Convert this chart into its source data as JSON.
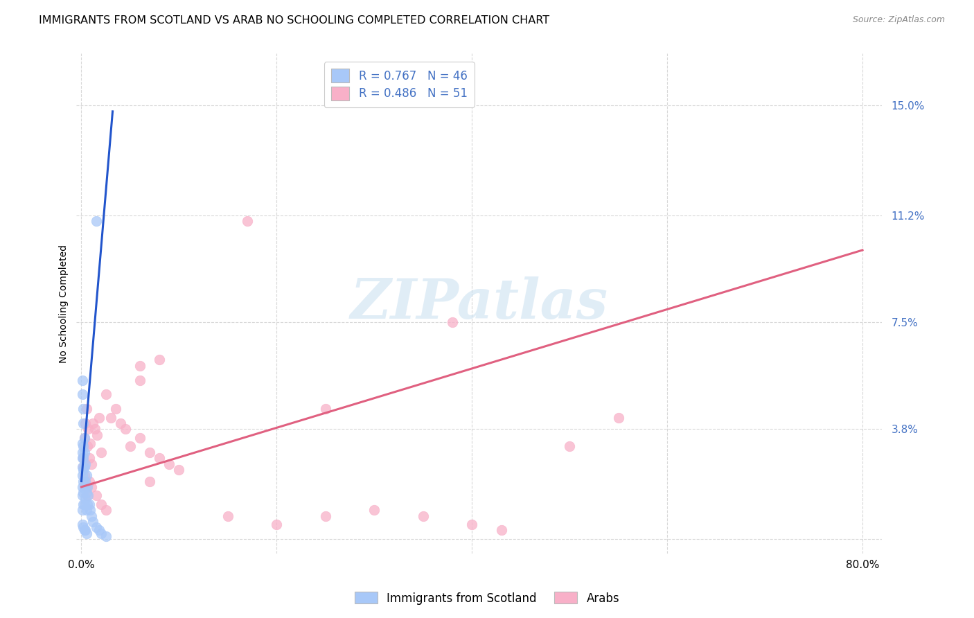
{
  "title": "IMMIGRANTS FROM SCOTLAND VS ARAB NO SCHOOLING COMPLETED CORRELATION CHART",
  "source": "Source: ZipAtlas.com",
  "ylabel": "No Schooling Completed",
  "ytick_positions": [
    0.0,
    0.038,
    0.075,
    0.112,
    0.15
  ],
  "ytick_labels": [
    "",
    "3.8%",
    "7.5%",
    "11.2%",
    "15.0%"
  ],
  "xlim": [
    -0.005,
    0.82
  ],
  "ylim": [
    -0.005,
    0.168
  ],
  "legend_blue_R": "0.767",
  "legend_blue_N": "46",
  "legend_pink_R": "0.486",
  "legend_pink_N": "51",
  "legend_label_blue": "Immigrants from Scotland",
  "legend_label_pink": "Arabs",
  "blue_scatter_color": "#a8c8f8",
  "pink_scatter_color": "#f8b0c8",
  "blue_line_color": "#2255cc",
  "pink_line_color": "#e06080",
  "watermark_text": "ZIPatlas",
  "watermark_color": "#c8dff0",
  "blue_scatter_x": [
    0.001,
    0.001,
    0.001,
    0.001,
    0.001,
    0.001,
    0.001,
    0.001,
    0.002,
    0.002,
    0.002,
    0.002,
    0.002,
    0.002,
    0.003,
    0.003,
    0.003,
    0.003,
    0.004,
    0.004,
    0.004,
    0.005,
    0.005,
    0.005,
    0.006,
    0.006,
    0.007,
    0.008,
    0.009,
    0.01,
    0.012,
    0.015,
    0.018,
    0.02,
    0.025,
    0.001,
    0.001,
    0.002,
    0.002,
    0.003,
    0.001,
    0.002,
    0.003,
    0.004,
    0.005,
    0.015
  ],
  "blue_scatter_y": [
    0.033,
    0.03,
    0.028,
    0.025,
    0.022,
    0.018,
    0.015,
    0.01,
    0.032,
    0.028,
    0.024,
    0.02,
    0.016,
    0.012,
    0.03,
    0.025,
    0.018,
    0.012,
    0.026,
    0.02,
    0.014,
    0.022,
    0.016,
    0.01,
    0.018,
    0.012,
    0.015,
    0.012,
    0.01,
    0.008,
    0.006,
    0.004,
    0.003,
    0.002,
    0.001,
    0.055,
    0.05,
    0.045,
    0.04,
    0.035,
    0.005,
    0.004,
    0.003,
    0.003,
    0.002,
    0.11
  ],
  "pink_scatter_x": [
    0.002,
    0.003,
    0.004,
    0.005,
    0.006,
    0.007,
    0.008,
    0.009,
    0.01,
    0.012,
    0.014,
    0.016,
    0.018,
    0.02,
    0.025,
    0.03,
    0.035,
    0.04,
    0.045,
    0.05,
    0.06,
    0.07,
    0.08,
    0.09,
    0.1,
    0.002,
    0.003,
    0.004,
    0.005,
    0.006,
    0.008,
    0.01,
    0.015,
    0.02,
    0.025,
    0.15,
    0.2,
    0.25,
    0.3,
    0.35,
    0.4,
    0.43,
    0.5,
    0.55,
    0.06,
    0.08,
    0.38,
    0.06,
    0.25,
    0.07,
    0.17
  ],
  "pink_scatter_y": [
    0.028,
    0.035,
    0.04,
    0.045,
    0.032,
    0.038,
    0.028,
    0.033,
    0.026,
    0.04,
    0.038,
    0.036,
    0.042,
    0.03,
    0.05,
    0.042,
    0.045,
    0.04,
    0.038,
    0.032,
    0.035,
    0.03,
    0.028,
    0.026,
    0.024,
    0.025,
    0.022,
    0.02,
    0.018,
    0.015,
    0.02,
    0.018,
    0.015,
    0.012,
    0.01,
    0.008,
    0.005,
    0.008,
    0.01,
    0.008,
    0.005,
    0.003,
    0.032,
    0.042,
    0.055,
    0.062,
    0.075,
    0.06,
    0.045,
    0.02,
    0.11
  ],
  "blue_trend_x": [
    0.0,
    0.032
  ],
  "blue_trend_y": [
    0.02,
    0.148
  ],
  "pink_trend_x": [
    0.0,
    0.8
  ],
  "pink_trend_y": [
    0.018,
    0.1
  ],
  "xtick_minor": [
    0.2,
    0.4,
    0.6
  ],
  "grid_color": "#d8d8d8",
  "text_color_blue": "#4472c4",
  "title_fontsize": 11.5,
  "source_fontsize": 9,
  "tick_fontsize": 11,
  "ylabel_fontsize": 10,
  "legend_fontsize": 12
}
